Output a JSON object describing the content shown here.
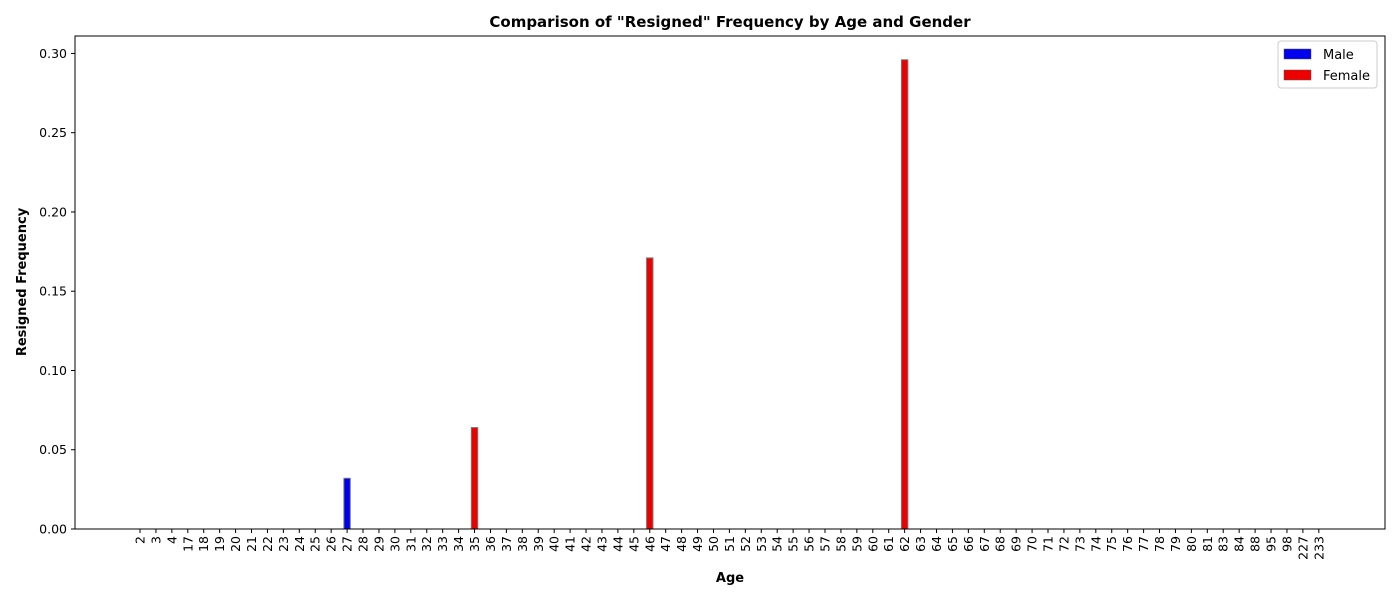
{
  "chart_data": {
    "type": "bar",
    "title": "Comparison of \"Resigned\" Frequency by Age and Gender",
    "xlabel": "Age",
    "ylabel": "Resigned Frequency",
    "ylim": [
      0,
      0.311
    ],
    "yticks": [
      "0.00",
      "0.05",
      "0.10",
      "0.15",
      "0.20",
      "0.25",
      "0.30"
    ],
    "ytick_values": [
      0,
      0.05,
      0.1,
      0.15,
      0.2,
      0.25,
      0.3
    ],
    "legend_position": "top-right",
    "grid": false,
    "categories": [
      "2",
      "3",
      "4",
      "17",
      "18",
      "19",
      "20",
      "21",
      "22",
      "23",
      "24",
      "25",
      "26",
      "27",
      "28",
      "29",
      "30",
      "31",
      "32",
      "33",
      "34",
      "35",
      "36",
      "37",
      "38",
      "39",
      "40",
      "41",
      "42",
      "43",
      "44",
      "45",
      "46",
      "47",
      "48",
      "49",
      "50",
      "51",
      "52",
      "53",
      "54",
      "55",
      "56",
      "57",
      "58",
      "59",
      "60",
      "61",
      "62",
      "63",
      "64",
      "65",
      "66",
      "67",
      "68",
      "69",
      "70",
      "71",
      "72",
      "73",
      "74",
      "75",
      "76",
      "77",
      "78",
      "79",
      "80",
      "81",
      "83",
      "84",
      "88",
      "95",
      "98",
      "227",
      "233"
    ],
    "series": [
      {
        "name": "Male",
        "color": "#0000ee",
        "values": [
          0,
          0,
          0,
          0,
          0,
          0,
          0,
          0,
          0,
          0,
          0,
          0,
          0,
          0.032,
          0,
          0,
          0,
          0,
          0,
          0,
          0,
          0,
          0,
          0,
          0,
          0,
          0,
          0,
          0,
          0,
          0,
          0,
          0,
          0,
          0,
          0,
          0,
          0,
          0,
          0,
          0,
          0,
          0,
          0,
          0,
          0,
          0,
          0,
          0,
          0,
          0,
          0,
          0,
          0,
          0,
          0,
          0,
          0,
          0,
          0,
          0,
          0,
          0,
          0,
          0,
          0,
          0,
          0,
          0,
          0,
          0,
          0,
          0,
          0,
          0
        ]
      },
      {
        "name": "Female",
        "color": "#ee0000",
        "values": [
          0,
          0,
          0,
          0,
          0,
          0,
          0,
          0,
          0,
          0,
          0,
          0,
          0,
          0,
          0,
          0,
          0,
          0,
          0,
          0,
          0,
          0.064,
          0,
          0,
          0,
          0,
          0,
          0,
          0,
          0,
          0,
          0,
          0.171,
          0,
          0,
          0,
          0,
          0,
          0,
          0,
          0,
          0,
          0,
          0,
          0,
          0,
          0,
          0,
          0.296,
          0,
          0,
          0,
          0,
          0,
          0,
          0,
          0,
          0,
          0,
          0,
          0,
          0,
          0,
          0,
          0,
          0,
          0,
          0,
          0,
          0,
          0,
          0,
          0,
          0,
          0
        ]
      }
    ]
  }
}
